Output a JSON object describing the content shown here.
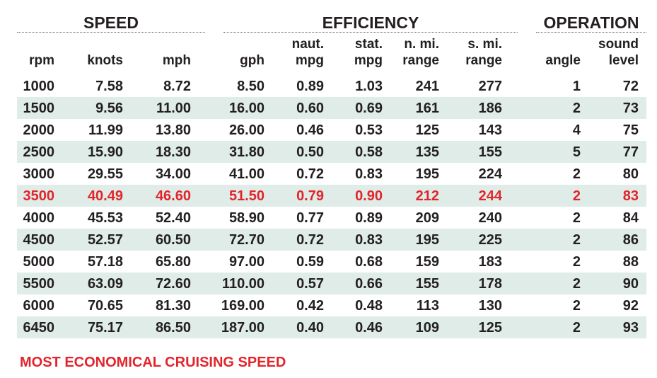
{
  "groups": {
    "speed": "SPEED",
    "efficiency": "EFFICIENCY",
    "operation": "OPERATION"
  },
  "headers": {
    "rpm": [
      "",
      "rpm"
    ],
    "knots": [
      "",
      "knots"
    ],
    "mph": [
      "",
      "mph"
    ],
    "gph": [
      "",
      "gph"
    ],
    "naut_mpg": [
      "naut.",
      "mpg"
    ],
    "stat_mpg": [
      "stat.",
      "mpg"
    ],
    "n_range": [
      "n. mi.",
      "range"
    ],
    "s_range": [
      "s. mi.",
      "range"
    ],
    "angle": [
      "",
      "angle"
    ],
    "sound": [
      "sound",
      "level"
    ]
  },
  "rows": [
    [
      "1000",
      "7.58",
      "8.72",
      "8.50",
      "0.89",
      "1.03",
      "241",
      "277",
      "1",
      "72"
    ],
    [
      "1500",
      "9.56",
      "11.00",
      "16.00",
      "0.60",
      "0.69",
      "161",
      "186",
      "2",
      "73"
    ],
    [
      "2000",
      "11.99",
      "13.80",
      "26.00",
      "0.46",
      "0.53",
      "125",
      "143",
      "4",
      "75"
    ],
    [
      "2500",
      "15.90",
      "18.30",
      "31.80",
      "0.50",
      "0.58",
      "135",
      "155",
      "5",
      "77"
    ],
    [
      "3000",
      "29.55",
      "34.00",
      "41.00",
      "0.72",
      "0.83",
      "195",
      "224",
      "2",
      "80"
    ],
    [
      "3500",
      "40.49",
      "46.60",
      "51.50",
      "0.79",
      "0.90",
      "212",
      "244",
      "2",
      "83"
    ],
    [
      "4000",
      "45.53",
      "52.40",
      "58.90",
      "0.77",
      "0.89",
      "209",
      "240",
      "2",
      "84"
    ],
    [
      "4500",
      "52.57",
      "60.50",
      "72.70",
      "0.72",
      "0.83",
      "195",
      "225",
      "2",
      "86"
    ],
    [
      "5000",
      "57.18",
      "65.80",
      "97.00",
      "0.59",
      "0.68",
      "159",
      "183",
      "2",
      "88"
    ],
    [
      "5500",
      "63.09",
      "72.60",
      "110.00",
      "0.57",
      "0.66",
      "155",
      "178",
      "2",
      "90"
    ],
    [
      "6000",
      "70.65",
      "81.30",
      "169.00",
      "0.42",
      "0.48",
      "113",
      "130",
      "2",
      "92"
    ],
    [
      "6450",
      "75.17",
      "86.50",
      "187.00",
      "0.40",
      "0.46",
      "109",
      "125",
      "2",
      "93"
    ]
  ],
  "highlight_row_rpm": "3500",
  "colors": {
    "highlight": "#e2252b",
    "stripe": "#dfece8",
    "text": "#231f20"
  },
  "legend": "MOST ECONOMICAL CRUISING SPEED"
}
